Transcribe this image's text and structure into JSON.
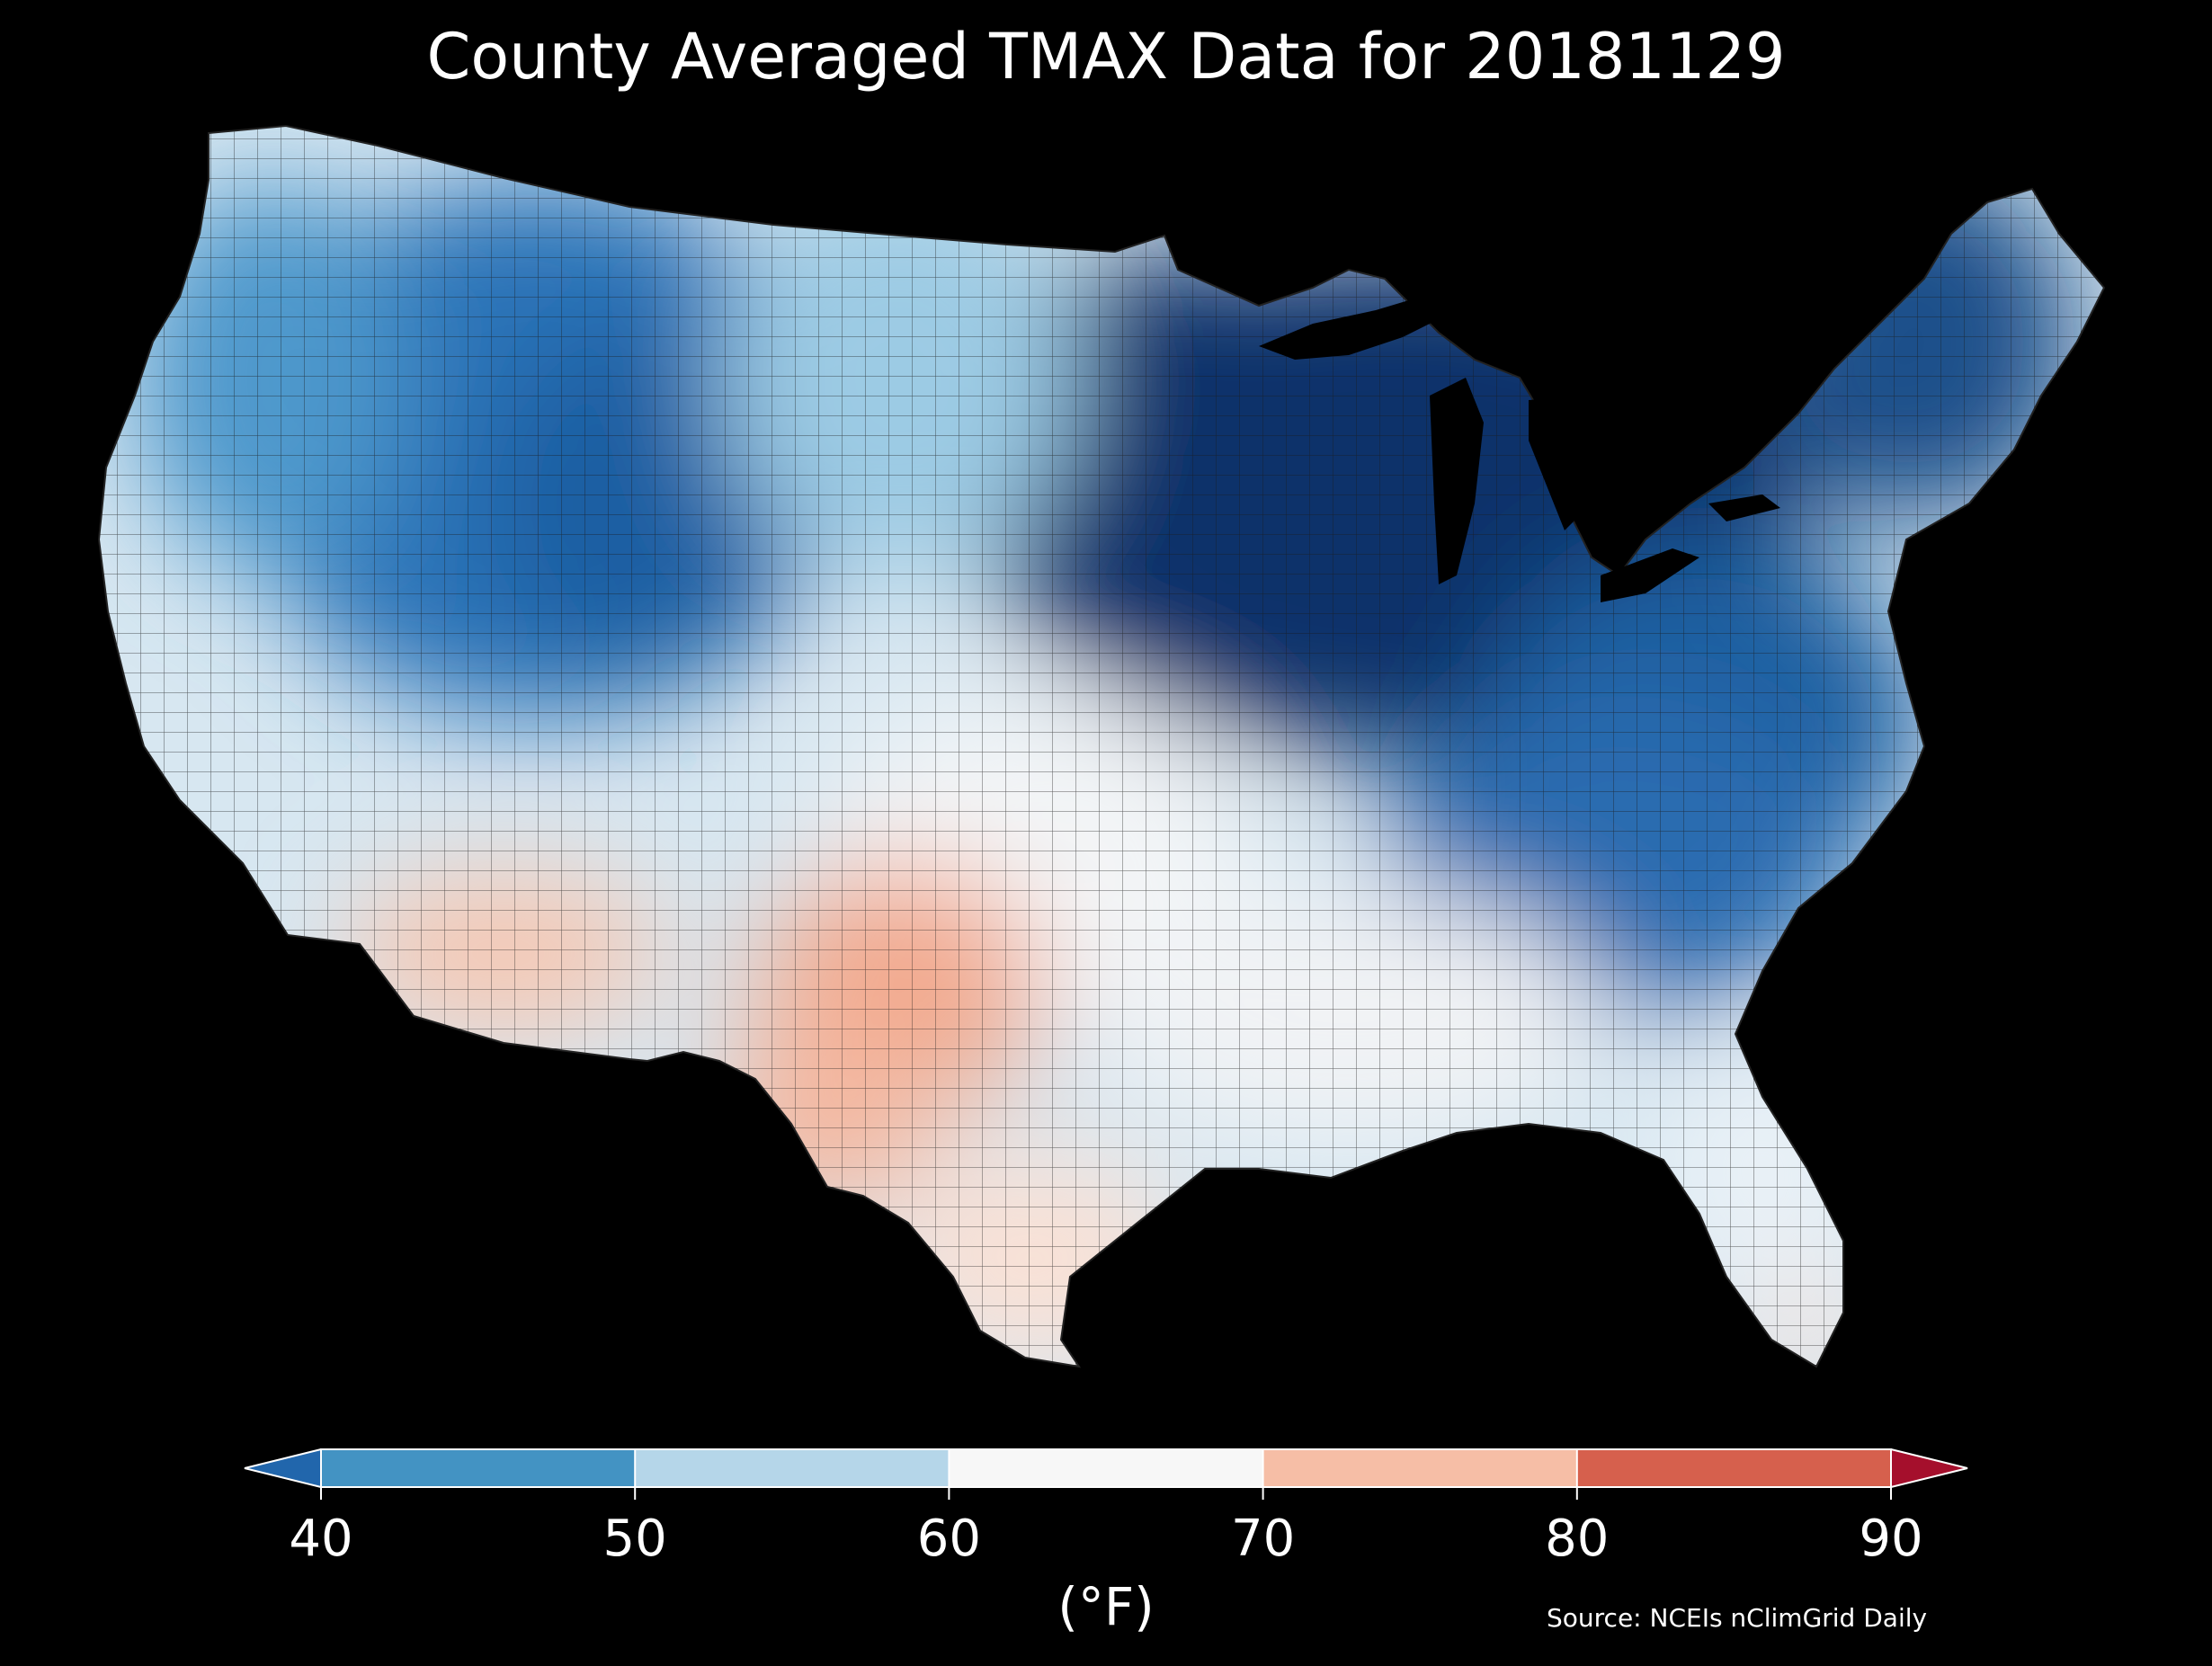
{
  "title": "County Averaged TMAX Data for 20181129",
  "colorbar": {
    "ticks": [
      "40",
      "50",
      "60",
      "70",
      "80",
      "90"
    ],
    "units": "(°F)",
    "bins": [
      {
        "from": null,
        "to": 40,
        "color": "#2166ac"
      },
      {
        "from": 40,
        "to": 50,
        "color": "#4393c3"
      },
      {
        "from": 50,
        "to": 60,
        "color": "#b5d6e9"
      },
      {
        "from": 60,
        "to": 70,
        "color": "#f7f7f7"
      },
      {
        "from": 70,
        "to": 80,
        "color": "#f6bea6"
      },
      {
        "from": 80,
        "to": 90,
        "color": "#d6604d"
      },
      {
        "from": 90,
        "to": null,
        "color": "#a50f2c"
      }
    ],
    "extend": "both"
  },
  "source": "Source: NCEIs nClimGrid Daily",
  "map": {
    "region": "Contiguous United States",
    "variable": "TMAX",
    "level": "county",
    "background": "#000000",
    "county_border_color": "#1a1a1a"
  }
}
